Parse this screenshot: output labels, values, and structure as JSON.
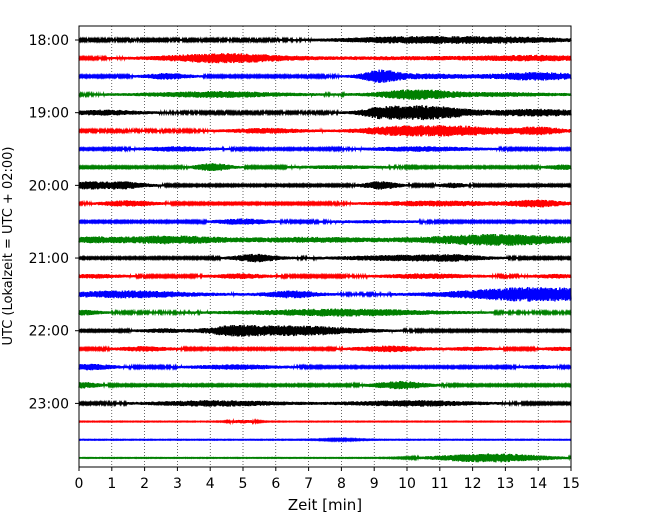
{
  "chart_data": {
    "type": "line",
    "chart_kind": "helicorder (seismogram traces)",
    "xlabel": "Zeit  [min]",
    "ylabel": "UTC (Lokalzeit = UTC + 02:00)",
    "xlim": [
      0,
      15
    ],
    "x_ticks": [
      0,
      1,
      2,
      3,
      4,
      5,
      6,
      7,
      8,
      9,
      10,
      11,
      12,
      13,
      14,
      15
    ],
    "x_tick_labels": [
      "0",
      "1",
      "2",
      "3",
      "4",
      "5",
      "6",
      "7",
      "8",
      "9",
      "10",
      "11",
      "12",
      "13",
      "14",
      "15"
    ],
    "y_tick_labels": [
      "18:00",
      "19:00",
      "20:00",
      "21:00",
      "22:00",
      "23:00"
    ],
    "y_tick_rows": [
      0,
      4,
      8,
      12,
      16,
      20
    ],
    "grid": "vertical dotted at each minute",
    "trace_minutes": 15,
    "trace_count": 24,
    "trace_colors": [
      "#000000",
      "#ff0000",
      "#0000ff",
      "#008000"
    ],
    "traces": [
      {
        "start": "18:00",
        "baseline": 1.0,
        "events": [
          [
            9.5,
            2.0,
            1.2
          ],
          [
            12.0,
            2.5,
            1.5
          ],
          [
            14.0,
            1.0,
            1.0
          ]
        ]
      },
      {
        "start": "18:15",
        "baseline": 0.9,
        "events": [
          [
            4.4,
            4.2,
            1.4
          ],
          [
            10.5,
            1.2,
            2.5
          ],
          [
            14.0,
            2.0,
            1.2
          ]
        ]
      },
      {
        "start": "18:30",
        "baseline": 0.9,
        "events": [
          [
            2.7,
            2.5,
            0.5
          ],
          [
            9.2,
            5.0,
            0.4
          ],
          [
            10.5,
            2.0,
            1.2
          ],
          [
            14.0,
            3.5,
            1.0
          ]
        ]
      },
      {
        "start": "18:45",
        "baseline": 1.0,
        "events": [
          [
            4.2,
            2.5,
            1.5
          ],
          [
            10.2,
            4.0,
            0.8
          ],
          [
            12.5,
            1.5,
            1.5
          ]
        ]
      },
      {
        "start": "19:00",
        "baseline": 1.0,
        "events": [
          [
            0.8,
            2.0,
            0.8
          ],
          [
            9.2,
            3.0,
            0.4
          ],
          [
            10.5,
            6.5,
            1.0
          ],
          [
            14.0,
            3.0,
            1.0
          ]
        ]
      },
      {
        "start": "19:15",
        "baseline": 1.0,
        "events": [
          [
            5.7,
            2.0,
            0.8
          ],
          [
            9.5,
            2.5,
            0.8
          ],
          [
            11.3,
            4.5,
            1.2
          ],
          [
            14.0,
            3.0,
            0.6
          ]
        ]
      },
      {
        "start": "19:30",
        "baseline": 0.8,
        "events": [
          [
            3.0,
            2.0,
            0.8
          ],
          [
            10.5,
            2.0,
            1.2
          ]
        ]
      },
      {
        "start": "19:45",
        "baseline": 0.8,
        "events": [
          [
            4.1,
            3.5,
            0.4
          ],
          [
            8.0,
            1.2,
            1.0
          ],
          [
            14.8,
            2.0,
            0.4
          ]
        ]
      },
      {
        "start": "20:00",
        "baseline": 0.8,
        "events": [
          [
            0.2,
            2.5,
            0.3
          ],
          [
            1.2,
            3.5,
            0.6
          ],
          [
            9.2,
            3.5,
            0.4
          ],
          [
            11.4,
            2.0,
            0.3
          ]
        ]
      },
      {
        "start": "20:15",
        "baseline": 0.8,
        "events": [
          [
            1.5,
            2.5,
            0.6
          ],
          [
            11.0,
            2.2,
            1.5
          ],
          [
            14.0,
            3.0,
            0.6
          ]
        ]
      },
      {
        "start": "20:30",
        "baseline": 0.8,
        "events": [
          [
            5.0,
            2.5,
            0.6
          ],
          [
            9.0,
            1.0,
            1.0
          ]
        ]
      },
      {
        "start": "20:45",
        "baseline": 1.0,
        "events": [
          [
            0.4,
            2.0,
            0.6
          ],
          [
            2.8,
            3.5,
            1.2
          ],
          [
            7.0,
            2.0,
            1.5
          ],
          [
            12.8,
            5.0,
            1.8
          ]
        ]
      },
      {
        "start": "21:00",
        "baseline": 0.8,
        "events": [
          [
            5.4,
            3.5,
            0.5
          ],
          [
            10.0,
            2.5,
            1.5
          ],
          [
            11.5,
            1.5,
            0.6
          ]
        ]
      },
      {
        "start": "21:15",
        "baseline": 0.9,
        "events": [
          [
            0.5,
            1.5,
            0.6
          ],
          [
            4.9,
            2.0,
            0.6
          ],
          [
            10.6,
            2.0,
            1.0
          ],
          [
            14.5,
            1.5,
            0.5
          ]
        ]
      },
      {
        "start": "21:30",
        "baseline": 1.0,
        "events": [
          [
            1.5,
            3.0,
            1.5
          ],
          [
            6.5,
            3.0,
            0.6
          ],
          [
            14.0,
            6.5,
            1.8
          ]
        ]
      },
      {
        "start": "21:45",
        "baseline": 1.0,
        "events": [
          [
            0.1,
            2.0,
            0.4
          ],
          [
            8.0,
            3.0,
            2.0
          ]
        ]
      },
      {
        "start": "22:00",
        "baseline": 0.8,
        "events": [
          [
            2.5,
            1.5,
            0.5
          ],
          [
            4.7,
            3.0,
            0.6
          ],
          [
            6.5,
            4.5,
            1.5
          ]
        ]
      },
      {
        "start": "22:15",
        "baseline": 0.8,
        "events": [
          [
            2.0,
            2.0,
            0.6
          ],
          [
            9.5,
            2.5,
            0.8
          ],
          [
            12.0,
            1.5,
            0.5
          ],
          [
            14.7,
            1.5,
            0.4
          ]
        ]
      },
      {
        "start": "22:30",
        "baseline": 0.8,
        "events": [
          [
            0.3,
            2.5,
            0.6
          ],
          [
            4.8,
            2.0,
            1.0
          ],
          [
            14.0,
            1.5,
            0.4
          ]
        ]
      },
      {
        "start": "22:45",
        "baseline": 0.8,
        "events": [
          [
            0.1,
            2.5,
            0.4
          ],
          [
            9.8,
            3.5,
            0.6
          ]
        ]
      },
      {
        "start": "23:00",
        "baseline": 0.8,
        "events": [
          [
            4.2,
            2.5,
            1.5
          ],
          [
            10.2,
            2.5,
            1.5
          ]
        ]
      },
      {
        "start": "23:15",
        "baseline": 0.3,
        "events": [
          [
            5.0,
            1.5,
            0.3
          ]
        ]
      },
      {
        "start": "23:30",
        "baseline": 0.3,
        "events": [
          [
            8.0,
            0.5,
            0.5
          ]
        ]
      },
      {
        "start": "23:45",
        "baseline": 0.3,
        "events": [
          [
            12.8,
            4.0,
            1.2
          ],
          [
            11.5,
            1.0,
            0.8
          ]
        ]
      }
    ]
  }
}
